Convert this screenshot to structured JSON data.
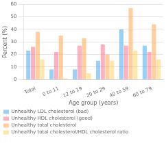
{
  "chart_data": {
    "type": "bar",
    "xlabel": "Age group (years)",
    "ylabel": "Percent (%)",
    "categories": [
      "Total",
      "0 to 11",
      "12 to 19",
      "20 to 29",
      "40 to 59",
      "60 to 79"
    ],
    "series": [
      {
        "name": "Unhealthy LDL cholesterol (bad)",
        "values": [
          23,
          8,
          8,
          15,
          40,
          27
        ]
      },
      {
        "name": "Unhealthy HDL cholesterol (good)",
        "values": [
          26,
          22,
          27,
          28,
          27,
          22
        ]
      },
      {
        "name": "Unhealthy total cholesterol",
        "values": [
          38,
          35,
          33,
          20,
          57,
          44
        ]
      },
      {
        "name": "Unhealthy total cholesterol/HDL cholesterol ratio",
        "values": [
          16,
          1,
          5,
          15,
          23,
          16
        ]
      }
    ],
    "ylim": [
      0,
      60
    ],
    "yticks": [
      0,
      10,
      20,
      30,
      40,
      50,
      60
    ],
    "grid": true,
    "legend": "bottom"
  }
}
